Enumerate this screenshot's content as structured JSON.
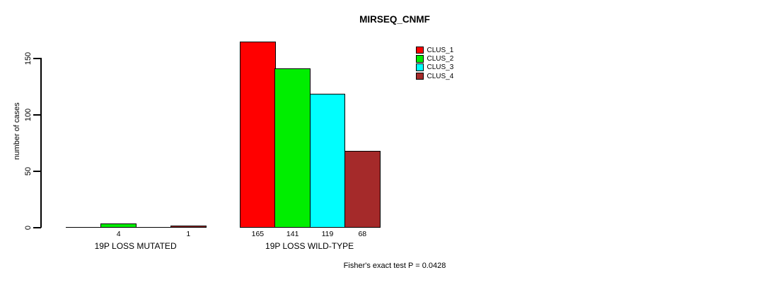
{
  "chart_data": {
    "type": "bar",
    "title": "MIRSEQ_CNMF",
    "ylabel": "number of cases",
    "yticks": [
      0,
      50,
      100,
      150
    ],
    "ylim": [
      0,
      170
    ],
    "grid": false,
    "legend_position": "top-right",
    "clusters": [
      {
        "name": "CLUS_1",
        "color": "#FF0000"
      },
      {
        "name": "CLUS_2",
        "color": "#00EE00"
      },
      {
        "name": "CLUS_3",
        "color": "#00FFFF"
      },
      {
        "name": "CLUS_4",
        "color": "#A52A2A"
      }
    ],
    "groups": [
      {
        "label": "19P LOSS MUTATED",
        "values": [
          0,
          4,
          0,
          1
        ],
        "value_labels": [
          "",
          "4",
          "",
          "1"
        ]
      },
      {
        "label": "19P LOSS WILD-TYPE",
        "values": [
          165,
          141,
          119,
          68
        ],
        "value_labels": [
          "165",
          "141",
          "119",
          "68"
        ]
      }
    ],
    "footnote": "Fisher's exact test P = 0.0428"
  }
}
